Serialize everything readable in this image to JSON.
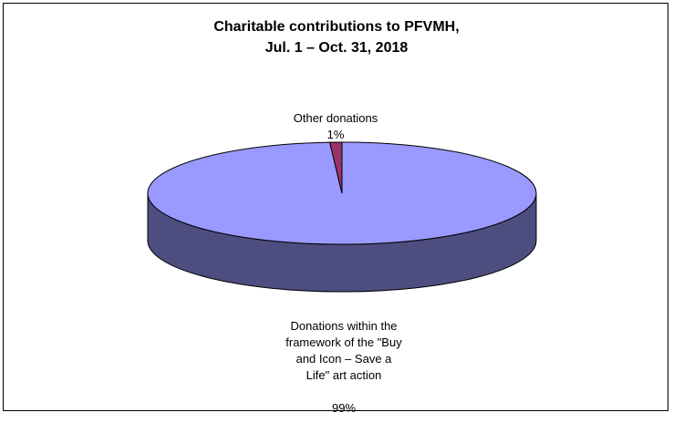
{
  "chart_data": {
    "type": "pie",
    "title": "Charitable contributions to PFVMH, Jul. 1 – Oct. 31, 2018",
    "title_lines": [
      "Charitable contributions to PFVMH,",
      "Jul. 1 – Oct. 31, 2018"
    ],
    "slices": [
      {
        "label": "Donations within the framework of the \"Buy and Icon – Save a Life\" art action",
        "label_display": "Donations within the\nframework of the \"Buy\nand Icon – Save a\nLife\" art action",
        "value": 99,
        "value_label": "99%",
        "color": "#9999ff",
        "side_color": "#4d4d80"
      },
      {
        "label": "Other donations",
        "value": 1,
        "value_label": "1%",
        "color": "#993366",
        "side_color": "#4d1a33"
      }
    ],
    "style": "3d-pie",
    "legend": "none"
  }
}
